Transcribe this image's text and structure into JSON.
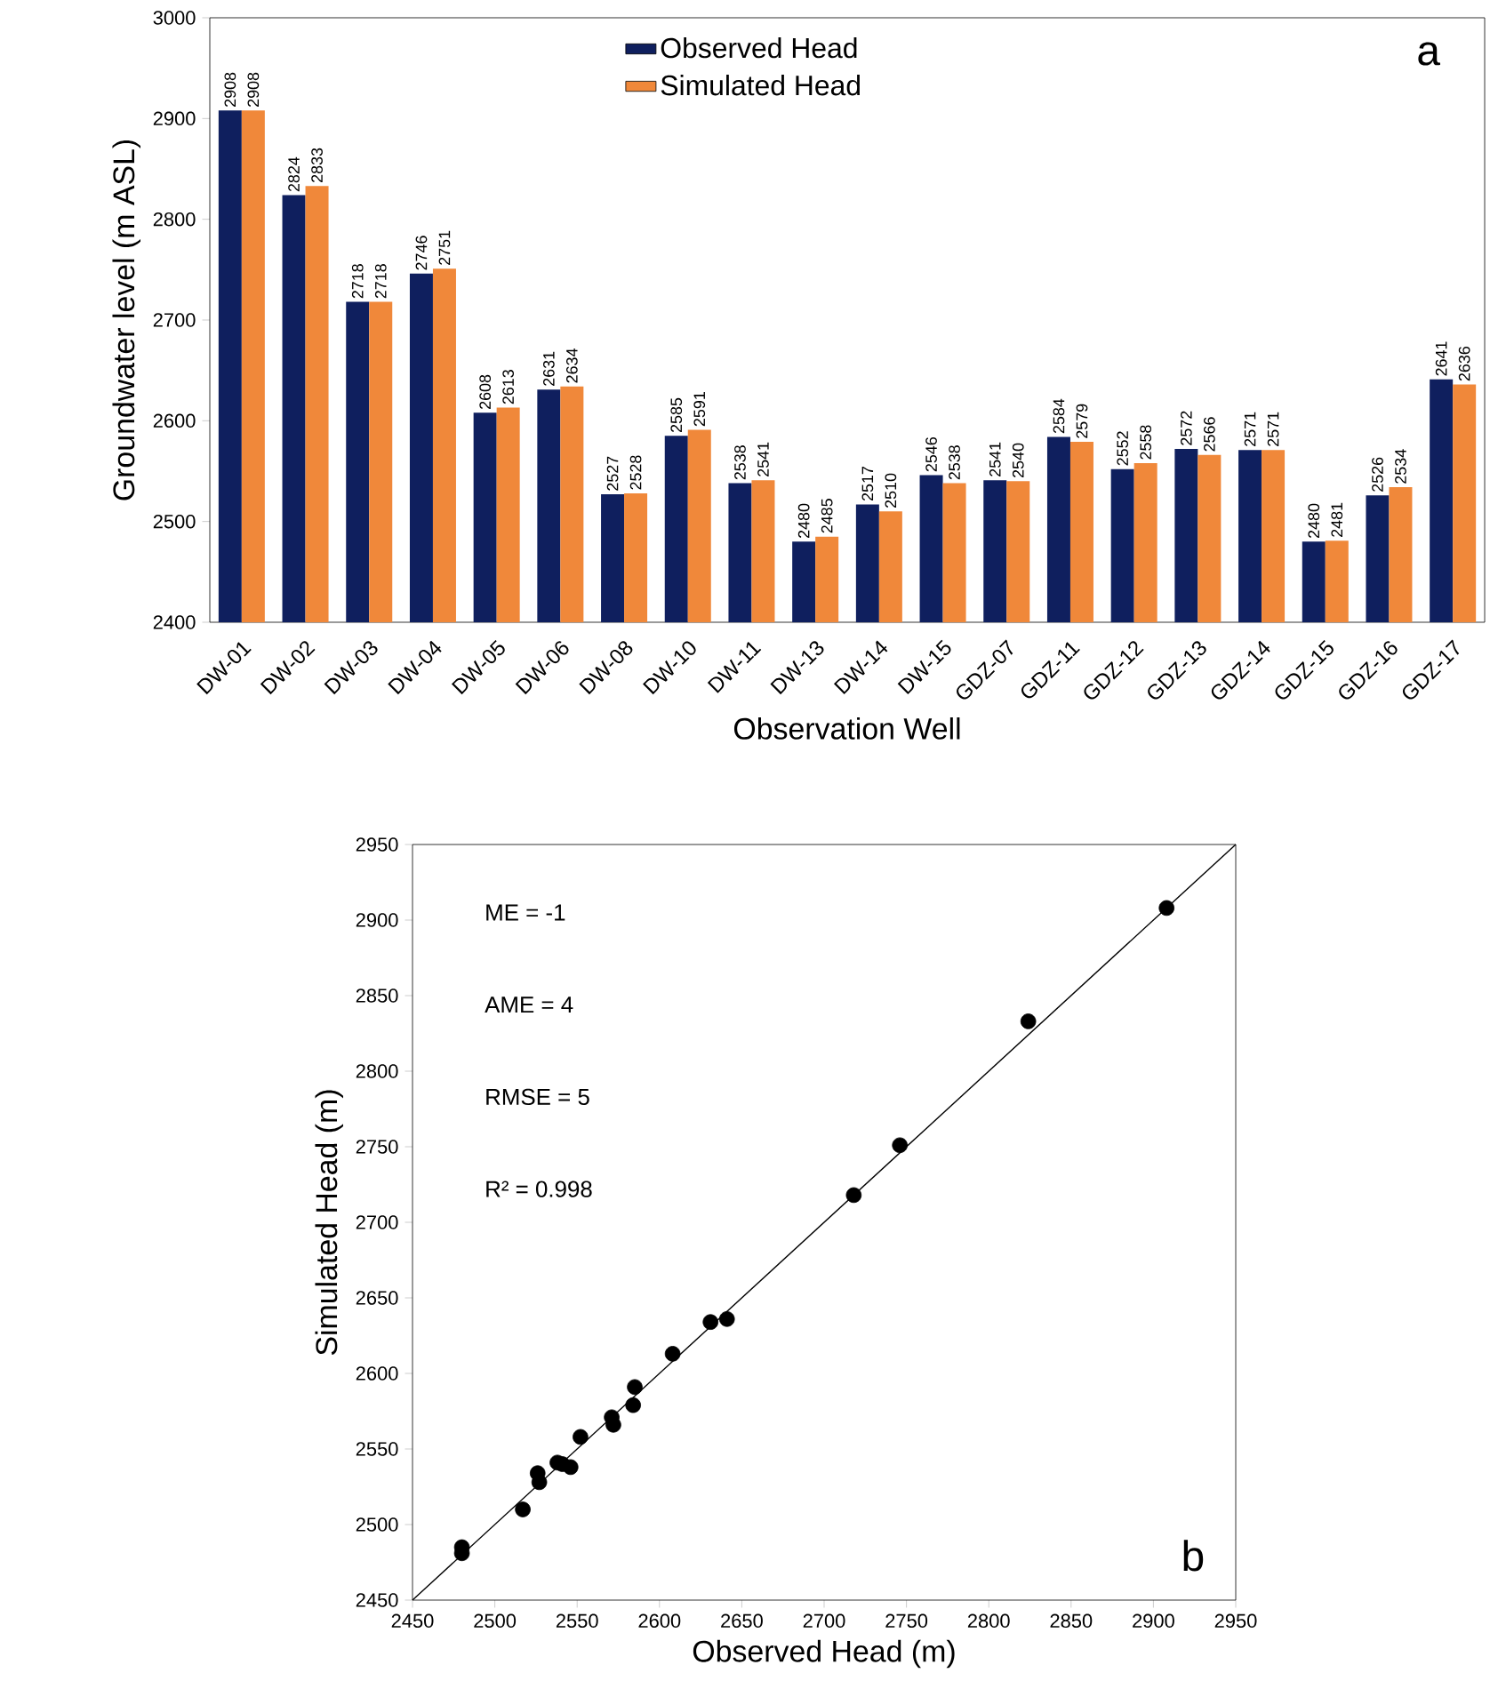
{
  "chart_data": [
    {
      "type": "bar",
      "xlabel": "Observation Well",
      "ylabel": "Groundwater level (m ASL)",
      "categories": [
        "DW-01",
        "DW-02",
        "DW-03",
        "DW-04",
        "DW-05",
        "DW-06",
        "DW-08",
        "DW-10",
        "DW-11",
        "DW-13",
        "DW-14",
        "DW-15",
        "GDZ-07",
        "GDZ-11",
        "GDZ-12",
        "GDZ-13",
        "GDZ-14",
        "GDZ-15",
        "GDZ-16",
        "GDZ-17"
      ],
      "series": [
        {
          "name": "Observed Head",
          "color": "#0f1f5e",
          "values": [
            2908,
            2824,
            2718,
            2746,
            2608,
            2631,
            2527,
            2585,
            2538,
            2480,
            2517,
            2546,
            2541,
            2584,
            2552,
            2572,
            2571,
            2480,
            2526,
            2641
          ]
        },
        {
          "name": "Simulated Head",
          "color": "#f0883a",
          "values": [
            2908,
            2833,
            2718,
            2751,
            2613,
            2634,
            2528,
            2591,
            2541,
            2485,
            2510,
            2538,
            2540,
            2579,
            2558,
            2566,
            2571,
            2481,
            2534,
            2636
          ]
        }
      ],
      "ylim": [
        2400,
        3000
      ],
      "yticks": [
        2400,
        2500,
        2600,
        2700,
        2800,
        2900,
        3000
      ],
      "data_labels": true,
      "legend": "top",
      "annotations": [
        "a"
      ]
    },
    {
      "type": "scatter",
      "xlabel": "Observed Head (m)",
      "ylabel": "Simulated Head (m)",
      "series": [
        {
          "type": "scatter",
          "color": "#000000",
          "marker": "circle",
          "x": [
            2908,
            2824,
            2718,
            2746,
            2608,
            2631,
            2527,
            2585,
            2538,
            2480,
            2517,
            2546,
            2541,
            2584,
            2552,
            2572,
            2571,
            2480,
            2526,
            2641
          ],
          "values": [
            2908,
            2833,
            2718,
            2751,
            2613,
            2634,
            2528,
            2591,
            2541,
            2485,
            2510,
            2538,
            2540,
            2579,
            2558,
            2566,
            2571,
            2481,
            2534,
            2636
          ]
        },
        {
          "type": "line",
          "color": "#000000",
          "x": [
            2450,
            2950
          ],
          "values": [
            2450,
            2950
          ]
        }
      ],
      "xlim": [
        2450,
        2950
      ],
      "xticks": [
        2450,
        2500,
        2550,
        2600,
        2650,
        2700,
        2750,
        2800,
        2850,
        2900,
        2950
      ],
      "ylim": [
        2450,
        2950
      ],
      "yticks": [
        2450,
        2500,
        2550,
        2600,
        2650,
        2700,
        2750,
        2800,
        2850,
        2900,
        2950
      ],
      "annotations": [
        "ME = -1",
        "AME = 4",
        "RMSE = 5",
        "R² = 0.998",
        "b"
      ]
    }
  ]
}
